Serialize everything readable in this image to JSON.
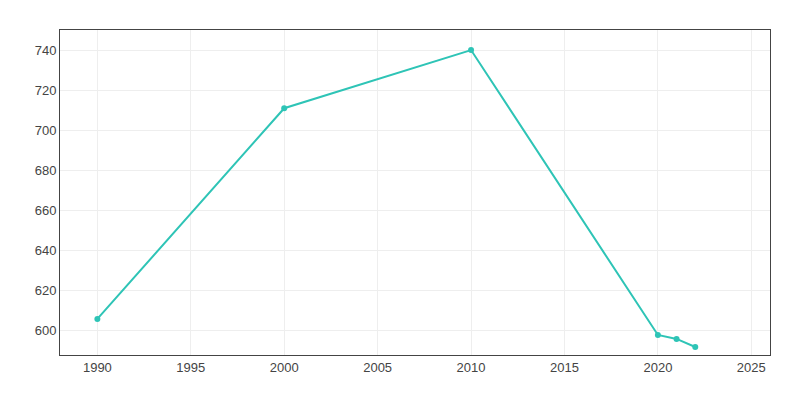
{
  "chart_data": {
    "type": "line",
    "x": [
      1990,
      2000,
      2010,
      2020,
      2021,
      2022
    ],
    "values": [
      606,
      711,
      740,
      598,
      596,
      592
    ],
    "color": "#2ec4b6",
    "marker": "circle",
    "xlim": [
      1988,
      2026
    ],
    "xticks": [
      1990,
      1995,
      2000,
      2005,
      2010,
      2015,
      2020,
      2025
    ],
    "ylim": [
      588,
      750
    ],
    "yticks": [
      600,
      620,
      640,
      660,
      680,
      700,
      720,
      740
    ],
    "grid": true
  }
}
